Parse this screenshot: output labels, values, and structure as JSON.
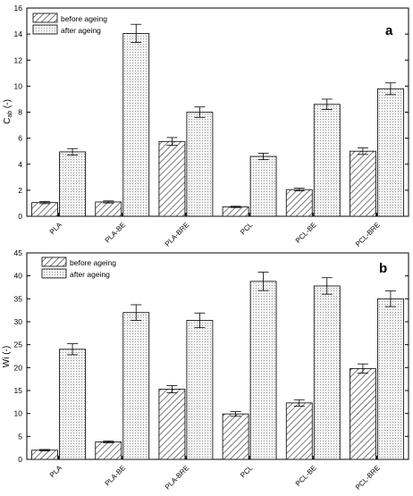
{
  "chart_data": [
    {
      "type": "bar",
      "panel_label": "a",
      "ylabel": "Cₑᵦ (-)",
      "ylabel_main": "C",
      "ylabel_sub": "ab",
      "ylabel_tail": " (-)",
      "categories": [
        "PLA",
        "PLA-BE",
        "PLA-BRE",
        "PCL",
        "PCL-BE",
        "PCL-BRE"
      ],
      "ylim": [
        0,
        16
      ],
      "yticks": [
        0,
        2,
        4,
        6,
        8,
        10,
        12,
        14,
        16
      ],
      "legend_position": "top-left",
      "series": [
        {
          "name": "before ageing",
          "pattern": "hatch",
          "values": [
            1.05,
            1.1,
            5.75,
            0.72,
            2.05,
            5.0
          ],
          "errors": [
            0.08,
            0.08,
            0.3,
            0.05,
            0.1,
            0.25
          ]
        },
        {
          "name": "after ageing",
          "pattern": "dots",
          "values": [
            4.95,
            14.05,
            8.0,
            4.6,
            8.6,
            9.8
          ],
          "errors": [
            0.25,
            0.7,
            0.4,
            0.25,
            0.4,
            0.45
          ]
        }
      ]
    },
    {
      "type": "bar",
      "panel_label": "b",
      "ylabel": "Wi (-)",
      "categories": [
        "PLA",
        "PLA-BE",
        "PLA-BRE",
        "PCL",
        "PCL-BE",
        "PCL-BRE"
      ],
      "ylim": [
        0,
        45
      ],
      "yticks": [
        0,
        5,
        10,
        15,
        20,
        25,
        30,
        35,
        40,
        45
      ],
      "legend_position": "top-left",
      "series": [
        {
          "name": "before ageing",
          "pattern": "hatch",
          "values": [
            2.0,
            3.8,
            15.3,
            9.9,
            12.3,
            19.8
          ],
          "errors": [
            0.15,
            0.2,
            0.8,
            0.5,
            0.7,
            1.0
          ]
        },
        {
          "name": "after ageing",
          "pattern": "dots",
          "values": [
            24.0,
            32.0,
            30.3,
            38.8,
            37.8,
            35.0
          ],
          "errors": [
            1.2,
            1.7,
            1.6,
            2.0,
            1.8,
            1.7
          ]
        }
      ]
    }
  ]
}
